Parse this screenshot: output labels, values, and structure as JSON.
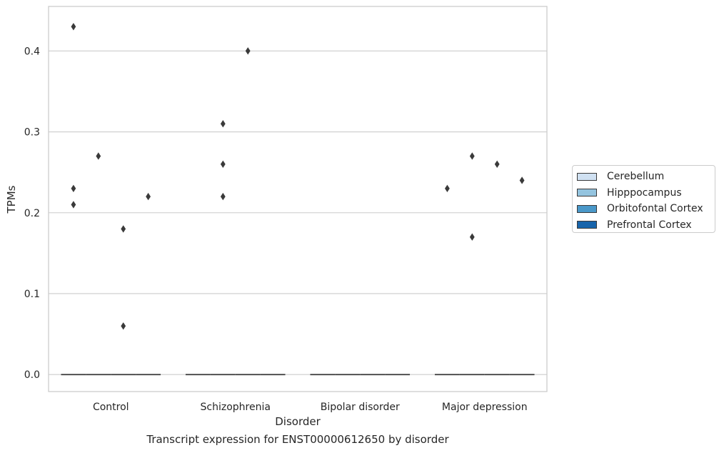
{
  "chart_data": {
    "type": "box",
    "title": "",
    "caption": "Transcript expression for ENST00000612650 by disorder",
    "xlabel": "Disorder",
    "ylabel": "TPMs",
    "ylim": [
      -0.021,
      0.455
    ],
    "yticks": [
      0.0,
      0.1,
      0.2,
      0.3,
      0.4
    ],
    "ytick_labels": [
      "0.0",
      "0.1",
      "0.2",
      "0.3",
      "0.4"
    ],
    "grid": "horizontal",
    "legend_position": "right",
    "categories": [
      "Control",
      "Schizophrenia",
      "Bipolar disorder",
      "Major depression"
    ],
    "series": [
      {
        "name": "Cerebellum",
        "color": "#d0e1f2",
        "medians": [
          0,
          0,
          0,
          0
        ]
      },
      {
        "name": "Hipppocampus",
        "color": "#94c4df",
        "medians": [
          0,
          0,
          0,
          0
        ]
      },
      {
        "name": "Orbitofontal Cortex",
        "color": "#4a98c9",
        "medians": [
          0,
          0,
          0,
          0
        ]
      },
      {
        "name": "Prefrontal Cortex",
        "color": "#1764ab",
        "medians": [
          0,
          0,
          0,
          0
        ]
      }
    ],
    "outliers": [
      {
        "category": "Control",
        "series": "Cerebellum",
        "values": [
          0.43,
          0.23,
          0.21
        ]
      },
      {
        "category": "Control",
        "series": "Hipppocampus",
        "values": [
          0.27
        ]
      },
      {
        "category": "Control",
        "series": "Orbitofontal Cortex",
        "values": [
          0.18,
          0.06
        ]
      },
      {
        "category": "Control",
        "series": "Prefrontal Cortex",
        "values": [
          0.22
        ]
      },
      {
        "category": "Schizophrenia",
        "series": "Hipppocampus",
        "values": [
          0.31,
          0.26,
          0.22
        ]
      },
      {
        "category": "Schizophrenia",
        "series": "Orbitofontal Cortex",
        "values": [
          0.4
        ]
      },
      {
        "category": "Major depression",
        "series": "Cerebellum",
        "values": [
          0.23
        ]
      },
      {
        "category": "Major depression",
        "series": "Hipppocampus",
        "values": [
          0.27,
          0.17
        ]
      },
      {
        "category": "Major depression",
        "series": "Orbitofontal Cortex",
        "values": [
          0.26
        ]
      },
      {
        "category": "Major depression",
        "series": "Prefrontal Cortex",
        "values": [
          0.24
        ]
      }
    ],
    "colors": {
      "grid": "#cccccc",
      "frame": "#cccccc",
      "marker": "#3a3a3a",
      "median_line": "#3a3a3a"
    }
  }
}
